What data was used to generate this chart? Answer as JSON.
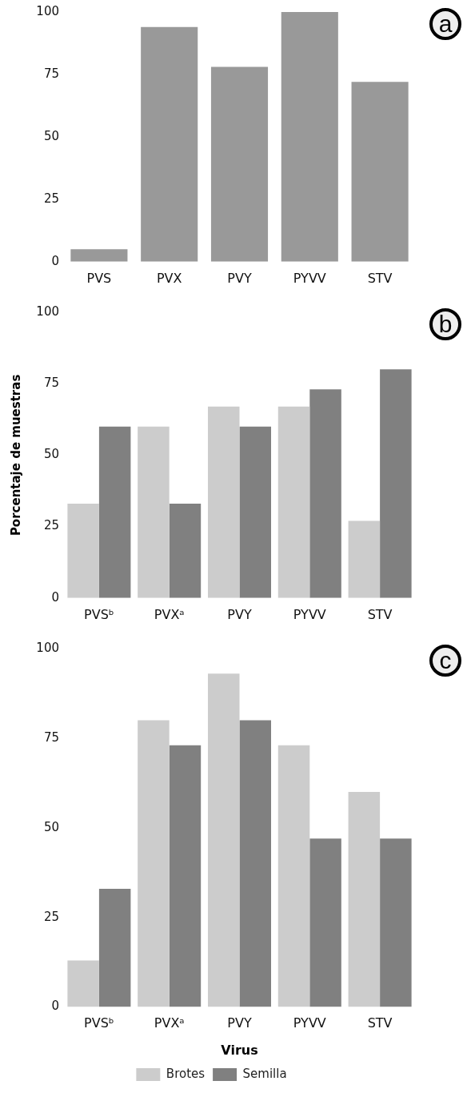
{
  "chart_data": [
    {
      "type": "bar",
      "categories": [
        "PVS",
        "PVX",
        "PVY",
        "PYVV",
        "STV"
      ],
      "values": [
        5,
        94,
        78,
        100,
        72
      ],
      "color": "#999999",
      "ylim": [
        0,
        100
      ],
      "yticks": [
        0,
        25,
        50,
        75,
        100
      ],
      "annotations": [
        "a"
      ]
    },
    {
      "type": "bar",
      "categories": [
        "PVSᵇ",
        "PVXᵃ",
        "PVY",
        "PYVV",
        "STV"
      ],
      "series": [
        {
          "color": "#cccccc",
          "values": [
            33,
            60,
            67,
            67,
            27
          ]
        },
        {
          "color": "#808080",
          "values": [
            60,
            33,
            60,
            73,
            80
          ]
        }
      ],
      "ylabel": "Porcentaje de muestras",
      "ylim": [
        0,
        100
      ],
      "yticks": [
        0,
        25,
        50,
        75,
        100
      ],
      "annotations": [
        "b"
      ]
    },
    {
      "type": "bar",
      "categories": [
        "PVSᵇ",
        "PVXᵃ",
        "PVY",
        "PYVV",
        "STV"
      ],
      "series": [
        {
          "name": "Brotes",
          "color": "#cccccc",
          "values": [
            13,
            80,
            93,
            73,
            60
          ]
        },
        {
          "name": "Semilla",
          "color": "#808080",
          "values": [
            33,
            73,
            80,
            47,
            47
          ]
        }
      ],
      "xlabel": "Virus",
      "ylim": [
        0,
        100
      ],
      "yticks": [
        0,
        25,
        50,
        75,
        100
      ],
      "legend": "bottom",
      "annotations": [
        "c"
      ]
    }
  ]
}
